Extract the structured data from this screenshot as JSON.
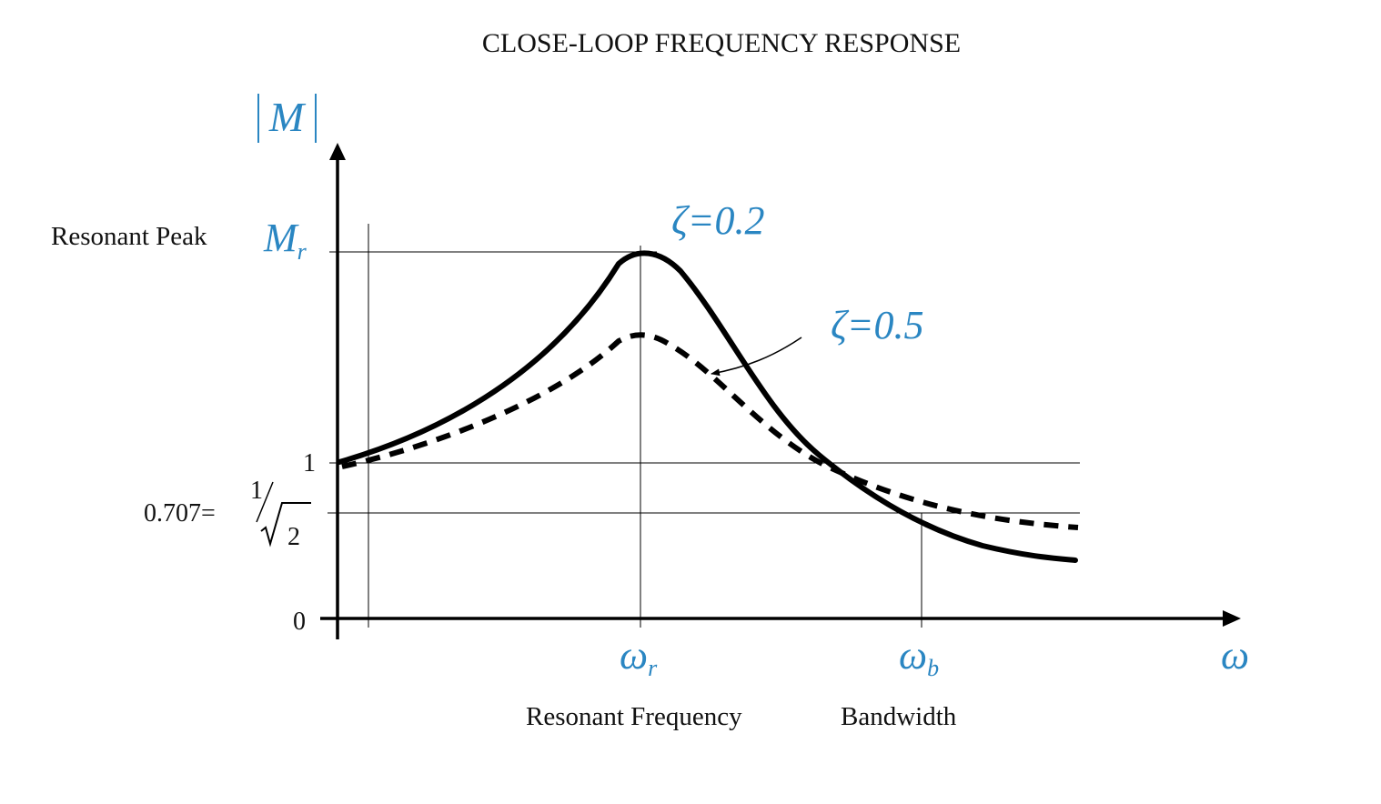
{
  "title": "CLOSE-LOOP FREQUENCY RESPONSE",
  "colors": {
    "accent": "#2a86c2",
    "ink": "#000000",
    "text": "#111111"
  },
  "y_axis": {
    "symbol": "M",
    "ticks": {
      "zero": "0",
      "one": "1",
      "half_power_value": "0.707=",
      "half_power_fraction_numerator": "1",
      "half_power_fraction_denominator": "2"
    }
  },
  "x_axis": {
    "symbol": "ω"
  },
  "annotations": {
    "resonant_peak_label": "Resonant Peak",
    "resonant_peak_symbol": "M",
    "resonant_peak_subscript": "r",
    "resonant_freq_symbol": "ω",
    "resonant_freq_subscript": "r",
    "resonant_freq_label": "Resonant Frequency",
    "bandwidth_symbol": "ω",
    "bandwidth_subscript": "b",
    "bandwidth_label": "Bandwidth"
  },
  "curves": [
    {
      "label": "ζ=0.2",
      "style": "solid"
    },
    {
      "label": "ζ=0.5",
      "style": "dashed"
    }
  ]
}
